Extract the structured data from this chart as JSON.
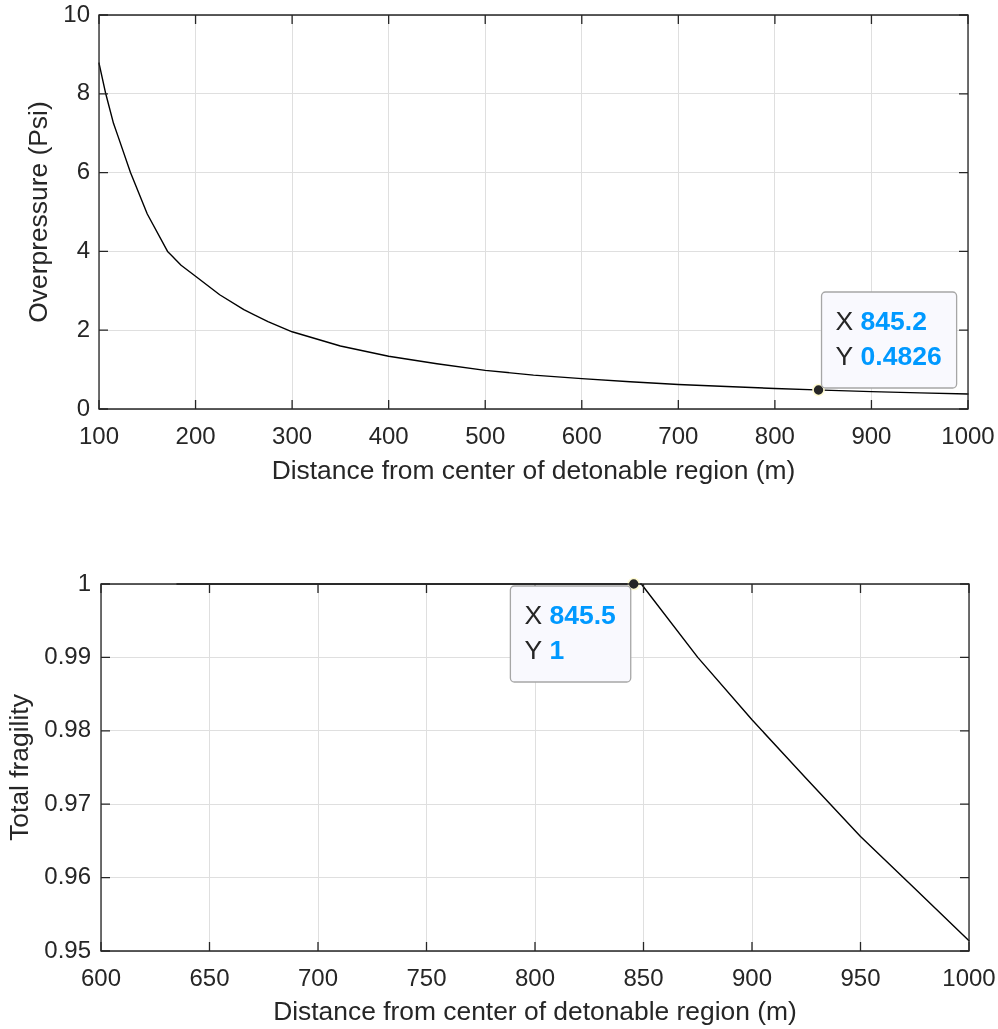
{
  "chart_data": [
    {
      "type": "line",
      "xlabel": "Distance from center of detonable region (m)",
      "ylabel": "Overpressure (Psi)",
      "xlim": [
        100,
        1000
      ],
      "xticks": [
        100,
        200,
        300,
        400,
        500,
        600,
        700,
        800,
        900,
        1000
      ],
      "ylim": [
        0,
        10
      ],
      "yticks": [
        0,
        2,
        4,
        6,
        8,
        10
      ],
      "grid": true,
      "series": [
        {
          "type": "line",
          "color": "#000000",
          "x": [
            100,
            107,
            115,
            120,
            132.6,
            150,
            171,
            185,
            200,
            225,
            250,
            275,
            300,
            350,
            400,
            450,
            500,
            550,
            600,
            650,
            700,
            750,
            800,
            850,
            900,
            950,
            1000
          ],
          "values": [
            8.78,
            8.0,
            7.25,
            6.9,
            6.0,
            4.95,
            4.0,
            3.65,
            3.37,
            2.9,
            2.52,
            2.22,
            1.96,
            1.6,
            1.34,
            1.15,
            0.98,
            0.86,
            0.77,
            0.69,
            0.62,
            0.57,
            0.52,
            0.48,
            0.44,
            0.41,
            0.38
          ]
        },
        {
          "type": "scatter",
          "color": "#262626",
          "marker": "circle",
          "x": [
            845.2
          ],
          "values": [
            0.4826
          ]
        }
      ],
      "annotations": [
        {
          "text": "X 845.2\nY 0.4826",
          "x": 845.2,
          "y": 0.4826
        }
      ]
    },
    {
      "type": "line",
      "xlabel": "Distance from center of detonable region (m)",
      "ylabel": "Total fragility",
      "xlim": [
        600,
        1000
      ],
      "xticks": [
        600,
        650,
        700,
        750,
        800,
        850,
        900,
        950,
        1000
      ],
      "ylim": [
        0.95,
        1
      ],
      "yticks": [
        0.95,
        0.96,
        0.97,
        0.98,
        0.99,
        1
      ],
      "grid": true,
      "series": [
        {
          "type": "line",
          "color": "#000000",
          "x": [
            635,
            849,
            875,
            900,
            925,
            950,
            975,
            1000
          ],
          "values": [
            1,
            1,
            0.99,
            0.9815,
            0.9735,
            0.9656,
            0.9585,
            0.9514
          ]
        },
        {
          "type": "scatter",
          "color": "#262626",
          "marker": "circle",
          "x": [
            845.5
          ],
          "values": [
            1
          ]
        }
      ],
      "annotations": [
        {
          "text": "X 845.5\nY 1",
          "x": 845.5,
          "y": 1
        }
      ]
    }
  ]
}
